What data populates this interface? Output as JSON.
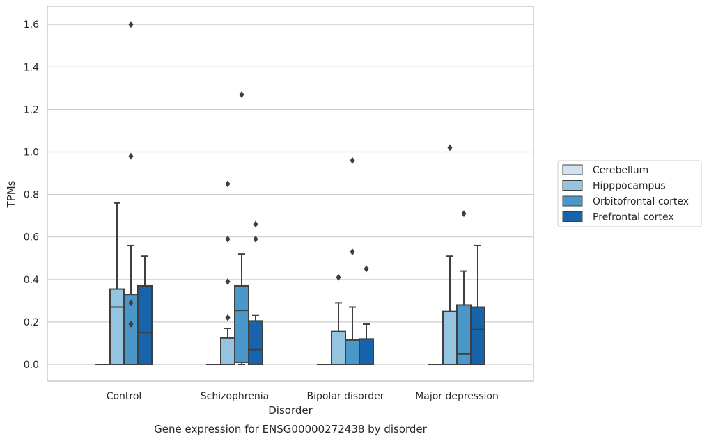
{
  "chart_data": {
    "type": "box",
    "caption": "Gene expression for ENSG00000272438 by disorder",
    "xlabel": "Disorder",
    "ylabel": "TPMs",
    "ylim": [
      -0.08,
      1.68
    ],
    "yticks": [
      0.0,
      0.2,
      0.4,
      0.6,
      0.8,
      1.0,
      1.2,
      1.4,
      1.6
    ],
    "ytick_labels": [
      "0.0",
      "0.2",
      "0.4",
      "0.6",
      "0.8",
      "1.0",
      "1.2",
      "1.4",
      "1.6"
    ],
    "grid": "horizontal",
    "legend_position": "right",
    "categories": [
      "Control",
      "Schizophrenia",
      "Bipolar disorder",
      "Major depression"
    ],
    "series": [
      {
        "name": "Cerebellum",
        "color": "#d0e2f1",
        "boxes": [
          {
            "q1": 0.0,
            "median": 0.0,
            "q3": 0.0,
            "whislo": 0.0,
            "whishi": 0.0,
            "fliers": []
          },
          {
            "q1": 0.0,
            "median": 0.0,
            "q3": 0.0,
            "whislo": 0.0,
            "whishi": 0.0,
            "fliers": []
          },
          {
            "q1": 0.0,
            "median": 0.0,
            "q3": 0.0,
            "whislo": 0.0,
            "whishi": 0.0,
            "fliers": []
          },
          {
            "q1": 0.0,
            "median": 0.0,
            "q3": 0.0,
            "whislo": 0.0,
            "whishi": 0.0,
            "fliers": []
          }
        ]
      },
      {
        "name": "Hipppocampus",
        "color": "#94c4df",
        "boxes": [
          {
            "q1": 0.0,
            "median": 0.27,
            "q3": 0.355,
            "whislo": 0.0,
            "whishi": 0.76,
            "fliers": []
          },
          {
            "q1": 0.0,
            "median": 0.0,
            "q3": 0.125,
            "whislo": 0.0,
            "whishi": 0.17,
            "fliers": [
              0.22,
              0.39,
              0.59,
              0.85
            ]
          },
          {
            "q1": 0.0,
            "median": 0.0,
            "q3": 0.155,
            "whislo": 0.0,
            "whishi": 0.29,
            "fliers": [
              0.41
            ]
          },
          {
            "q1": 0.0,
            "median": 0.0,
            "q3": 0.25,
            "whislo": 0.0,
            "whishi": 0.51,
            "fliers": [
              1.02
            ]
          }
        ]
      },
      {
        "name": "Orbitofrontal cortex",
        "color": "#4a98c9",
        "boxes": [
          {
            "q1": 0.0,
            "median": 0.0,
            "q3": 0.33,
            "whislo": 0.0,
            "whishi": 0.56,
            "fliers": [
              0.19,
              0.29,
              0.98,
              1.6
            ]
          },
          {
            "q1": 0.01,
            "median": 0.255,
            "q3": 0.37,
            "whislo": 0.0,
            "whishi": 0.52,
            "fliers": [
              1.27
            ]
          },
          {
            "q1": 0.0,
            "median": 0.0,
            "q3": 0.115,
            "whislo": 0.0,
            "whishi": 0.27,
            "fliers": [
              0.53,
              0.96
            ]
          },
          {
            "q1": 0.0,
            "median": 0.05,
            "q3": 0.28,
            "whislo": 0.0,
            "whishi": 0.44,
            "fliers": [
              0.71
            ]
          }
        ]
      },
      {
        "name": "Prefrontal cortex",
        "color": "#1764ab",
        "boxes": [
          {
            "q1": 0.0,
            "median": 0.15,
            "q3": 0.37,
            "whislo": 0.0,
            "whishi": 0.51,
            "fliers": []
          },
          {
            "q1": 0.0,
            "median": 0.07,
            "q3": 0.205,
            "whislo": 0.0,
            "whishi": 0.23,
            "fliers": [
              0.59,
              0.66
            ]
          },
          {
            "q1": 0.0,
            "median": 0.0,
            "q3": 0.12,
            "whislo": 0.0,
            "whishi": 0.19,
            "fliers": [
              0.45
            ]
          },
          {
            "q1": 0.0,
            "median": 0.165,
            "q3": 0.27,
            "whislo": 0.0,
            "whishi": 0.56,
            "fliers": []
          }
        ]
      }
    ]
  }
}
